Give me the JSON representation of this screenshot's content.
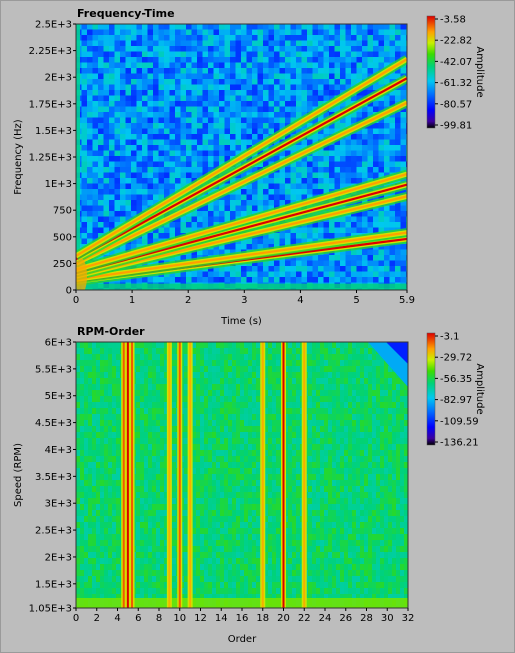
{
  "chart_data": [
    {
      "type": "heatmap",
      "title": "Frequency-Time",
      "xlabel": "Time (s)",
      "ylabel": "Frequency (Hz)",
      "xlim": [
        0,
        5.9
      ],
      "ylim": [
        0,
        2500
      ],
      "x_ticks": [
        "0",
        "1",
        "2",
        "3",
        "4",
        "5",
        "5.9"
      ],
      "y_ticks": [
        "0",
        "250",
        "500",
        "750",
        "1E+3",
        "1.25E+3",
        "1.5E+3",
        "1.75E+3",
        "2E+3",
        "2.25E+3",
        "2.5E+3"
      ],
      "colorbar_label": "Amplitude",
      "colorbar_ticks": [
        "-3.58",
        "-22.82",
        "-42.07",
        "-61.32",
        "-80.57",
        "-99.81"
      ],
      "ridges": [
        {
          "start": [
            0,
            80
          ],
          "end": [
            5.9,
            480
          ]
        },
        {
          "start": [
            0,
            100
          ],
          "end": [
            5.9,
            540
          ]
        },
        {
          "start": [
            0,
            130
          ],
          "end": [
            5.9,
            880
          ]
        },
        {
          "start": [
            0,
            160
          ],
          "end": [
            5.9,
            990
          ]
        },
        {
          "start": [
            0,
            190
          ],
          "end": [
            5.9,
            1090
          ]
        },
        {
          "start": [
            0,
            250
          ],
          "end": [
            5.9,
            1760
          ]
        },
        {
          "start": [
            0,
            290
          ],
          "end": [
            5.9,
            1990
          ]
        },
        {
          "start": [
            0,
            320
          ],
          "end": [
            5.9,
            2170
          ]
        }
      ]
    },
    {
      "type": "heatmap",
      "title": "RPM-Order",
      "xlabel": "Order",
      "ylabel": "Speed (RPM)",
      "xlim": [
        0,
        32
      ],
      "ylim": [
        1050,
        6000
      ],
      "x_ticks": [
        "0",
        "2",
        "4",
        "6",
        "8",
        "10",
        "12",
        "14",
        "16",
        "18",
        "20",
        "22",
        "24",
        "26",
        "28",
        "30",
        "32"
      ],
      "y_ticks": [
        "1.05E+3",
        "1.5E+3",
        "2E+3",
        "2.5E+3",
        "3E+3",
        "3.5E+3",
        "4E+3",
        "4.5E+3",
        "5E+3",
        "5.5E+3",
        "6E+3"
      ],
      "colorbar_label": "Amplitude",
      "colorbar_ticks": [
        "-3.1",
        "-29.72",
        "-56.35",
        "-82.97",
        "-109.59",
        "-136.21"
      ],
      "order_lines": [
        4.6,
        5.0,
        5.4,
        9.0,
        10.0,
        11.0,
        18.0,
        20.0,
        22.0
      ]
    }
  ]
}
